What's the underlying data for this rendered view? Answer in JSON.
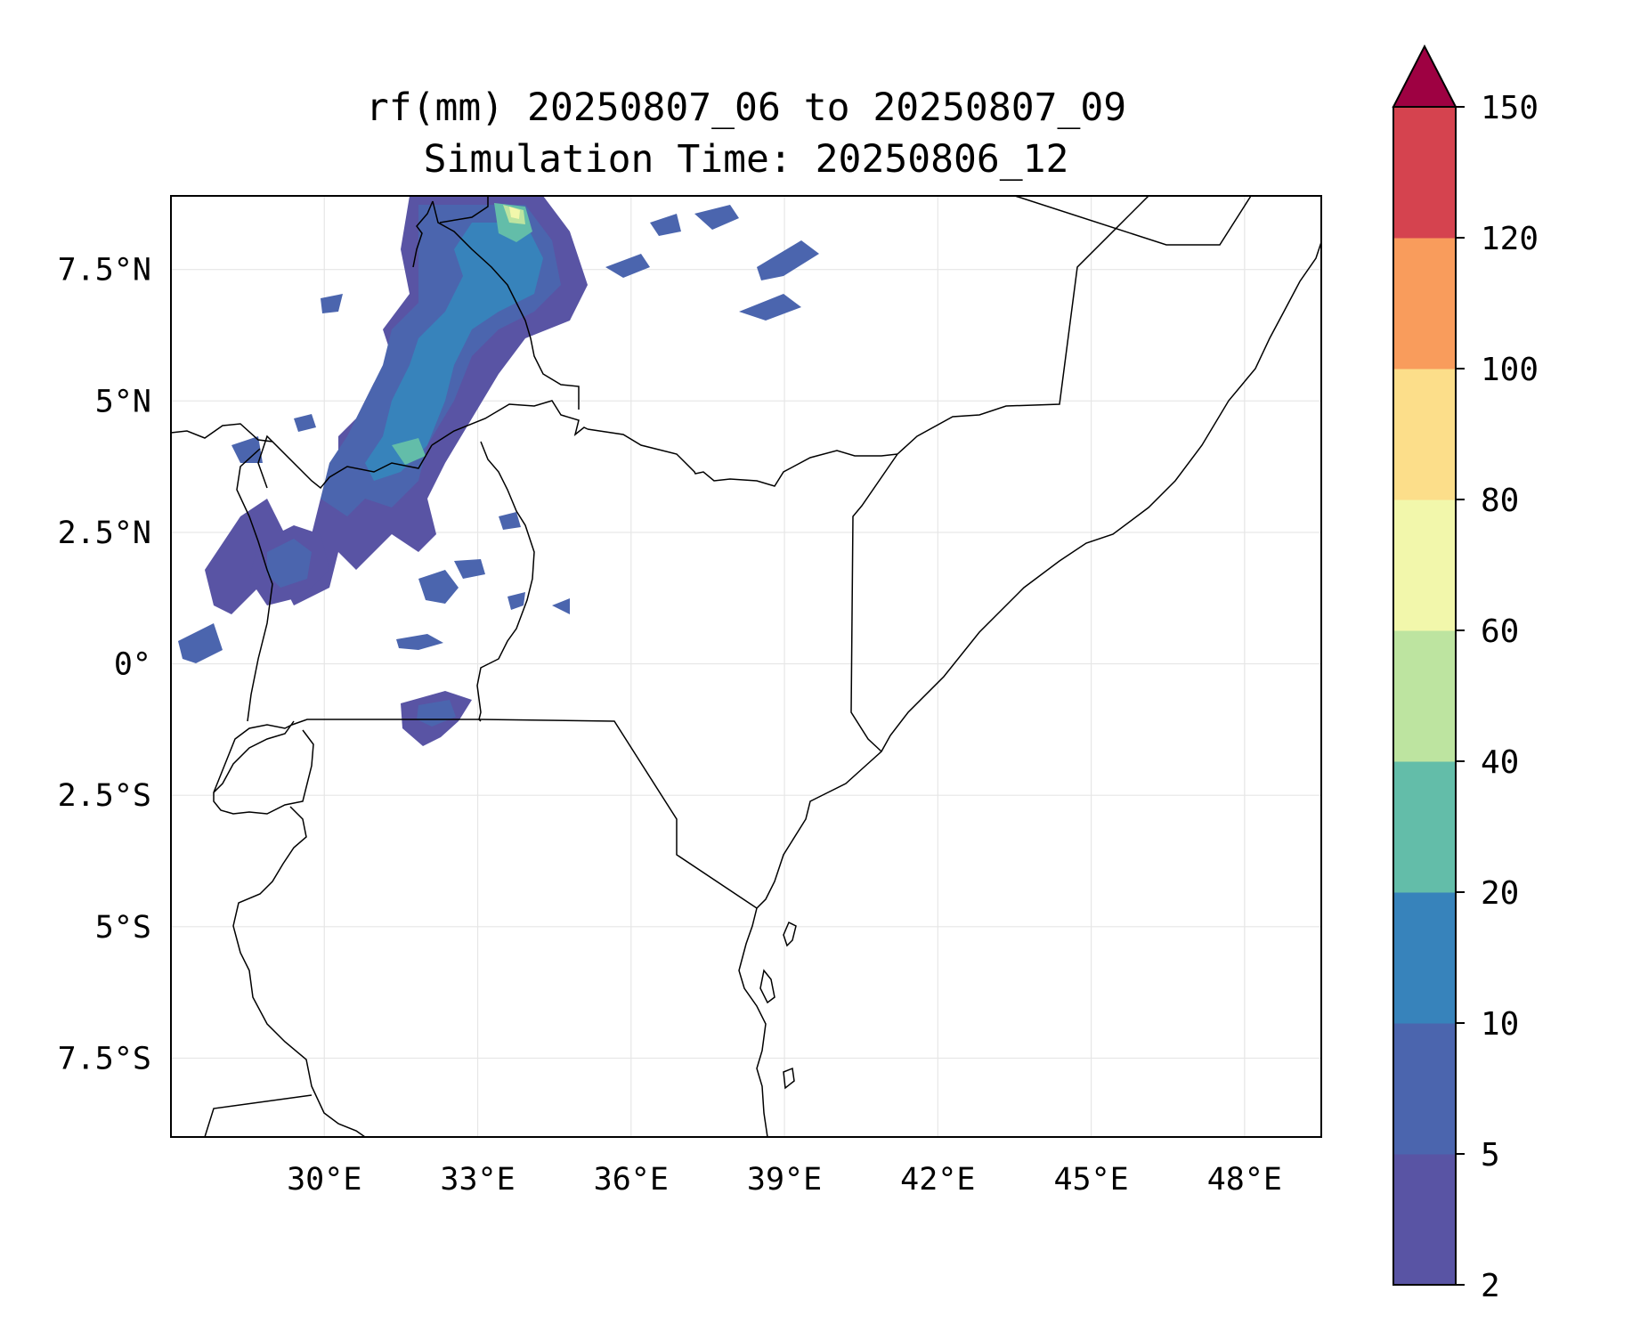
{
  "title": {
    "line1": "rf(mm) 20250807_06 to 20250807_09",
    "line2": "Simulation Time: 20250806_12"
  },
  "map": {
    "lon_range": [
      27.0,
      49.5
    ],
    "lat_range": [
      -9.0,
      8.9
    ],
    "x_ticks": [
      "30°E",
      "33°E",
      "36°E",
      "39°E",
      "42°E",
      "45°E",
      "48°E"
    ],
    "y_ticks": [
      "7.5°N",
      "5°N",
      "2.5°N",
      "0°",
      "2.5°S",
      "5°S",
      "7.5°S"
    ]
  },
  "colorbar": {
    "levels": [
      "2",
      "5",
      "10",
      "20",
      "40",
      "60",
      "80",
      "100",
      "120",
      "150"
    ],
    "colors": [
      "#5954a4",
      "#4b65ae",
      "#3783bb",
      "#63bda9",
      "#bde4a0",
      "#f2f7ab",
      "#fcde8a",
      "#f99c5c",
      "#d5434f",
      "#9e0142"
    ],
    "extend": "max"
  }
}
